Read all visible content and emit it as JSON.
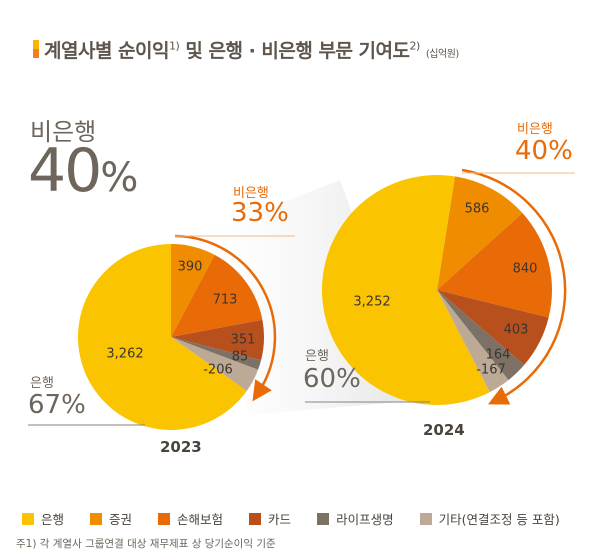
{
  "title": {
    "text": "계열사별 순이익",
    "sup1": "1)",
    "text2": "및 은행 · 비은행 부문 기여도",
    "sup2": "2)",
    "unit": "(십억원)"
  },
  "headline": {
    "label": "비은행",
    "value": "40",
    "unit": "%"
  },
  "chart_data": [
    {
      "type": "pie",
      "year": "2023",
      "categories": [
        "은행",
        "증권",
        "손해보험",
        "카드",
        "라이프생명",
        "기타(연결조정 등 포함)"
      ],
      "values": [
        3262,
        390,
        713,
        351,
        85,
        -206
      ],
      "value_labels": [
        "3,262",
        "390",
        "713",
        "351",
        "85",
        "-206"
      ],
      "bank_label": "은행",
      "bank_share": "67%",
      "nonbank_label": "비은행",
      "nonbank_share": "33%"
    },
    {
      "type": "pie",
      "year": "2024",
      "categories": [
        "은행",
        "증권",
        "손해보험",
        "카드",
        "라이프생명",
        "기타(연결조정 등 포함)"
      ],
      "values": [
        3252,
        586,
        840,
        403,
        164,
        -167
      ],
      "value_labels": [
        "3,252",
        "586",
        "840",
        "403",
        "164",
        "-167"
      ],
      "bank_label": "은행",
      "bank_share": "60%",
      "nonbank_label": "비은행",
      "nonbank_share": "40%"
    }
  ],
  "legend": [
    {
      "label": "은행",
      "color": "#FBC400"
    },
    {
      "label": "증권",
      "color": "#F08C00"
    },
    {
      "label": "손해보험",
      "color": "#E96B07"
    },
    {
      "label": "카드",
      "color": "#B8501E"
    },
    {
      "label": "라이프생명",
      "color": "#7D7065"
    },
    {
      "label": "기타(연결조정 등 포함)",
      "color": "#BCAA96"
    }
  ],
  "accent": "#E96B07",
  "note": "주1) 각 계열사 그룹연결 대상 재무제표 상 당기순이익 기준"
}
